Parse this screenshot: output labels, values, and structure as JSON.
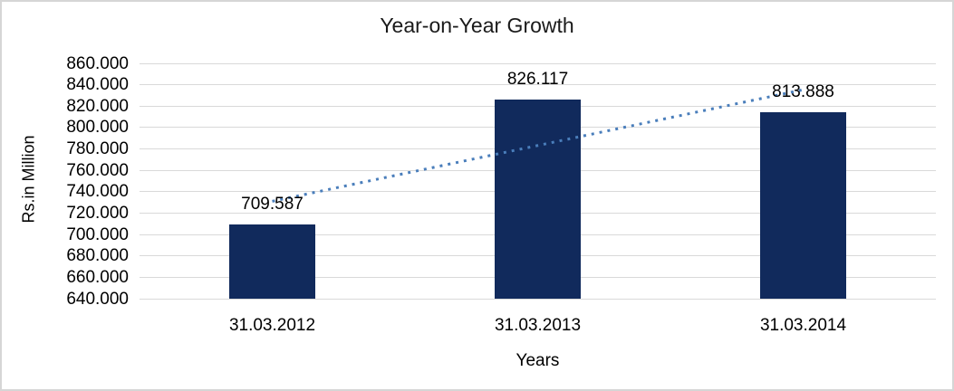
{
  "chart_data": {
    "type": "bar",
    "title": "Year-on-Year Growth",
    "categories": [
      "31.03.2012",
      "31.03.2013",
      "31.03.2014"
    ],
    "values": [
      709.587,
      826.117,
      813.888
    ],
    "value_labels": [
      "709.587",
      "826.117",
      "813.888"
    ],
    "xlabel": "Years",
    "ylabel": "Rs.in Million",
    "ylim": [
      640,
      860
    ],
    "ytick_step": 20,
    "ytick_labels": [
      "860.000",
      "840.000",
      "820.000",
      "800.000",
      "780.000",
      "760.000",
      "740.000",
      "720.000",
      "700.000",
      "680.000",
      "660.000",
      "640.000"
    ],
    "grid": true,
    "legend": "none",
    "trendline": {
      "type": "linear",
      "style": "dotted"
    },
    "colors": {
      "bar": "#112a5c",
      "trendline": "#4a7ebb",
      "gridline": "#d9d9d9",
      "text": "#000000",
      "frame_border": "#d6d6d6",
      "background": "#ffffff"
    }
  }
}
